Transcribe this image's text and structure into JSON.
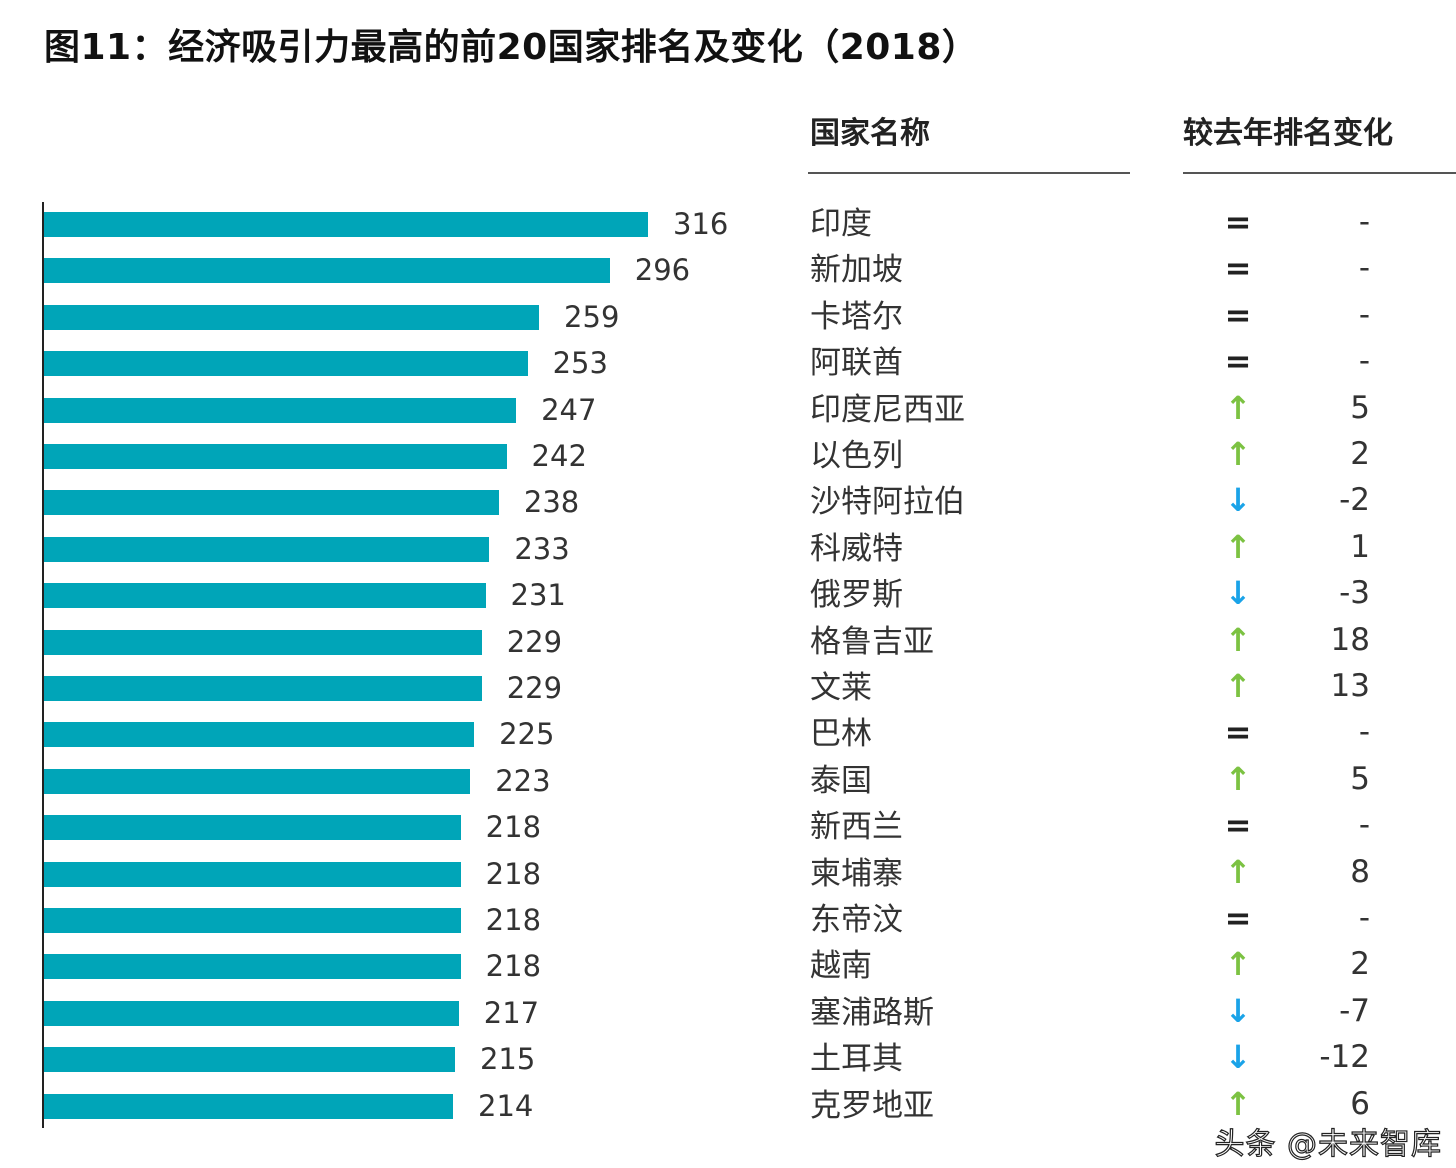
{
  "title": "图11：经济吸引力最高的前20国家排名及变化（2018）",
  "headers": {
    "country": "国家名称",
    "change": "较去年排名变化"
  },
  "watermark": "头条 @未来智库",
  "colors": {
    "bar": "#00a5b8",
    "up": "#7cc242",
    "down": "#1aa3e8",
    "same": "#222222"
  },
  "chart_data": {
    "type": "bar",
    "orientation": "horizontal",
    "title": "图11：经济吸引力最高的前20国家排名及变化（2018）",
    "categories": [
      "印度",
      "新加坡",
      "卡塔尔",
      "阿联酋",
      "印度尼西亚",
      "以色列",
      "沙特阿拉伯",
      "科威特",
      "俄罗斯",
      "格鲁吉亚",
      "文莱",
      "巴林",
      "泰国",
      "新西兰",
      "柬埔寨",
      "东帝汶",
      "越南",
      "塞浦路斯",
      "土耳其",
      "克罗地亚"
    ],
    "values": [
      316,
      296,
      259,
      253,
      247,
      242,
      238,
      233,
      231,
      229,
      229,
      225,
      223,
      218,
      218,
      218,
      218,
      217,
      215,
      214
    ],
    "rank_change": [
      {
        "dir": "same",
        "label": "-"
      },
      {
        "dir": "same",
        "label": "-"
      },
      {
        "dir": "same",
        "label": "-"
      },
      {
        "dir": "same",
        "label": "-"
      },
      {
        "dir": "up",
        "label": "5"
      },
      {
        "dir": "up",
        "label": "2"
      },
      {
        "dir": "down",
        "label": "-2"
      },
      {
        "dir": "up",
        "label": "1"
      },
      {
        "dir": "down",
        "label": "-3"
      },
      {
        "dir": "up",
        "label": "18"
      },
      {
        "dir": "up",
        "label": "13"
      },
      {
        "dir": "same",
        "label": "-"
      },
      {
        "dir": "up",
        "label": "5"
      },
      {
        "dir": "same",
        "label": "-"
      },
      {
        "dir": "up",
        "label": "8"
      },
      {
        "dir": "same",
        "label": "-"
      },
      {
        "dir": "up",
        "label": "2"
      },
      {
        "dir": "down",
        "label": "-7"
      },
      {
        "dir": "down",
        "label": "-12"
      },
      {
        "dir": "up",
        "label": "6"
      }
    ],
    "xlim": [
      0,
      316
    ],
    "grid": false
  }
}
